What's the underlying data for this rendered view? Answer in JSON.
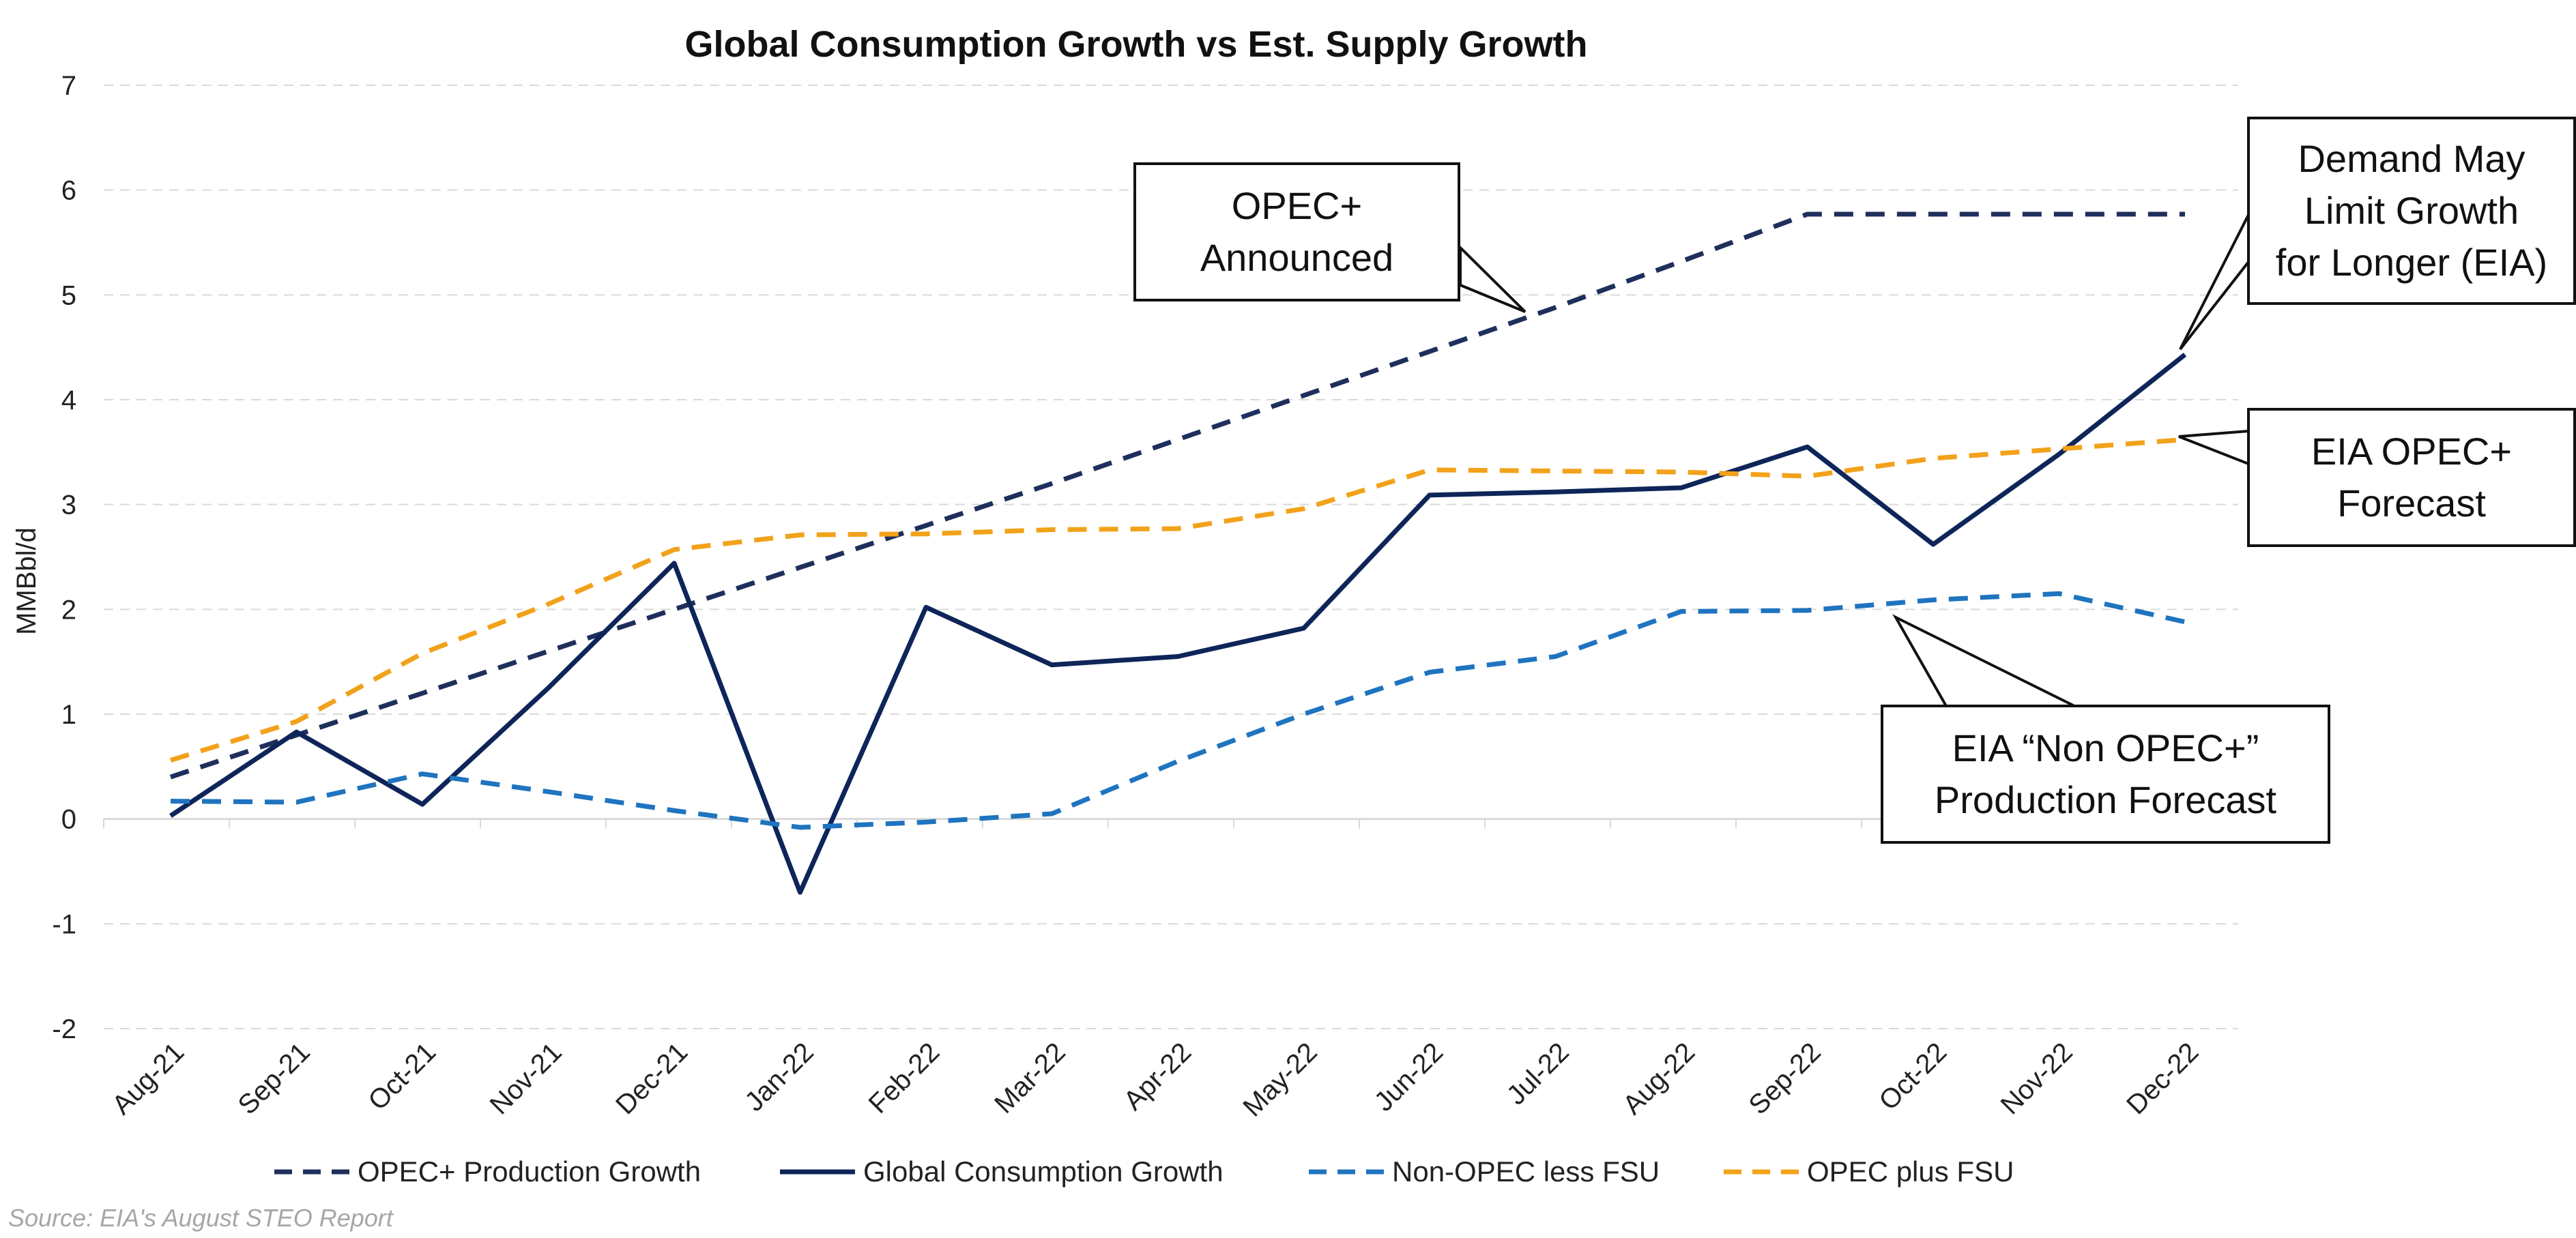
{
  "chart_data": {
    "type": "line",
    "title": "Global Consumption Growth vs Est. Supply Growth",
    "ylabel": "MMBbl/d",
    "xlabel": "",
    "ylim": [
      -2,
      7
    ],
    "yticks": [
      -2,
      -1,
      0,
      1,
      2,
      3,
      4,
      5,
      6,
      7
    ],
    "grid": true,
    "legend_position": "bottom",
    "categories": [
      "Aug-21",
      "Sep-21",
      "Oct-21",
      "Nov-21",
      "Dec-21",
      "Jan-22",
      "Feb-22",
      "Mar-22",
      "Apr-22",
      "May-22",
      "Jun-22",
      "Jul-22",
      "Aug-22",
      "Sep-22",
      "Oct-22",
      "Nov-22",
      "Dec-22"
    ],
    "series": [
      {
        "name": "OPEC+ Production Growth",
        "style": "dashed",
        "color": "#1f2f5c",
        "values": [
          0.4,
          0.8,
          1.2,
          1.6,
          2.0,
          2.4,
          2.8,
          3.2,
          3.62,
          4.04,
          4.46,
          4.88,
          5.32,
          5.77,
          5.77,
          5.77,
          5.77
        ]
      },
      {
        "name": "Global Consumption Growth",
        "style": "solid",
        "color": "#0e2559",
        "values": [
          0.03,
          0.83,
          0.14,
          1.25,
          2.44,
          -0.7,
          2.02,
          1.47,
          1.55,
          1.82,
          3.09,
          3.12,
          3.16,
          3.55,
          2.62,
          3.48,
          4.43
        ]
      },
      {
        "name": "Non-OPEC less FSU",
        "style": "dashed",
        "color": "#1f74bf",
        "values": [
          0.17,
          0.16,
          0.43,
          0.26,
          0.08,
          -0.08,
          -0.03,
          0.05,
          0.55,
          1.0,
          1.4,
          1.55,
          1.98,
          1.99,
          2.09,
          2.15,
          1.88
        ]
      },
      {
        "name": "OPEC plus FSU",
        "style": "dashed",
        "color": "#f2a21a",
        "values": [
          0.56,
          0.93,
          1.58,
          2.05,
          2.57,
          2.71,
          2.72,
          2.76,
          2.77,
          2.96,
          3.33,
          3.32,
          3.31,
          3.27,
          3.44,
          3.53,
          3.62
        ]
      }
    ],
    "annotations": [
      {
        "text_lines": [
          "OPEC+",
          "Announced"
        ],
        "points_to": "OPEC+ Production Growth, Jul-22"
      },
      {
        "text_lines": [
          "Demand May",
          "Limit Growth",
          "for Longer (EIA)"
        ],
        "points_to": "Global Consumption Growth, Dec-22"
      },
      {
        "text_lines": [
          "EIA OPEC+",
          "Forecast"
        ],
        "points_to": "OPEC plus FSU, Dec-22"
      },
      {
        "text_lines": [
          "EIA “Non OPEC+”",
          "Production Forecast"
        ],
        "points_to": "Non-OPEC less FSU, Oct-22"
      }
    ],
    "source": "Source: EIA's August STEO Report"
  }
}
